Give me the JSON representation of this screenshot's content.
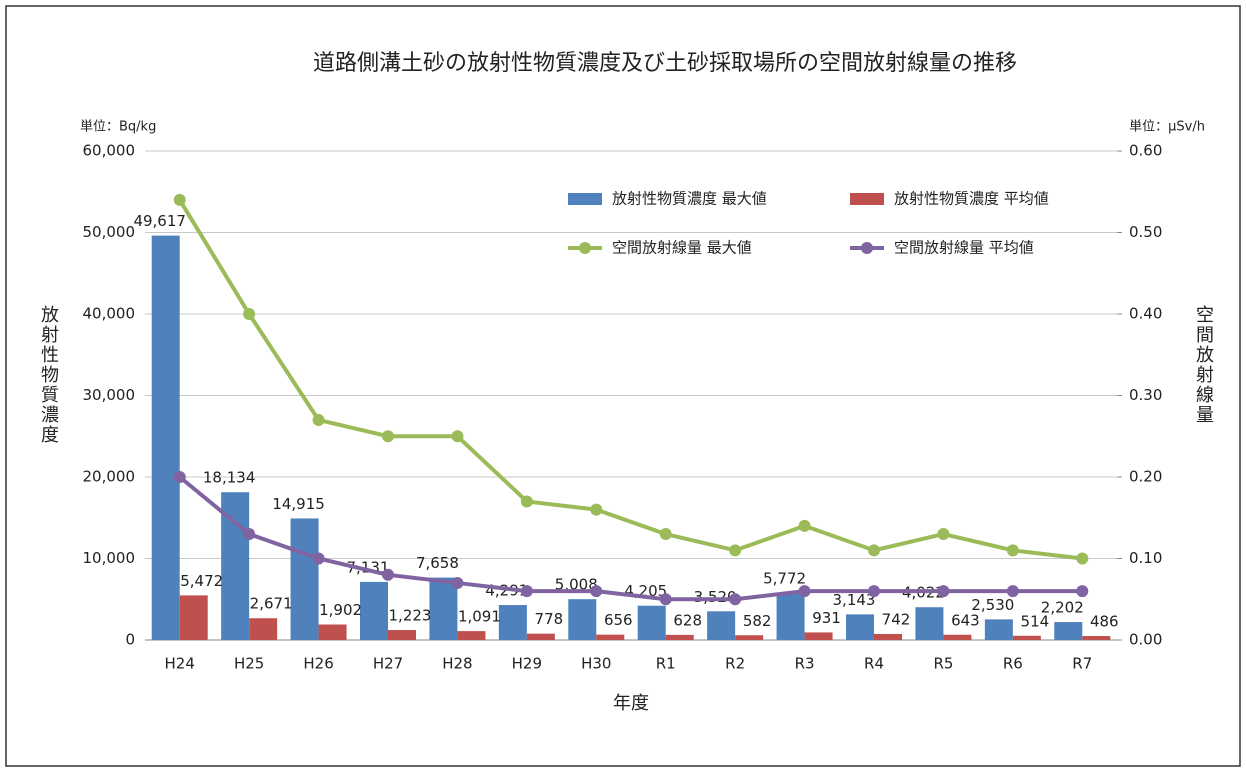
{
  "chart_data": {
    "type": "bar-line",
    "title": "道路側溝土砂の放射性物質濃度及び土砂採取場所の空間放射線量の推移",
    "y_unit": "単位：Bq/kg",
    "y2_unit": "単位：μSv/h",
    "y_label": "放射性物質濃度",
    "y2_label": "空間放射線量",
    "x_label": "年度",
    "categories": [
      "H24",
      "H25",
      "H26",
      "H27",
      "H28",
      "H29",
      "H30",
      "R1",
      "R2",
      "R3",
      "R4",
      "R5",
      "R6",
      "R7"
    ],
    "series": [
      {
        "name": "放射性物質濃度 最大値",
        "kind": "bar",
        "color": "#4f81bd",
        "values": [
          49617,
          18134,
          14915,
          7131,
          7658,
          4291,
          5008,
          4205,
          3520,
          5772,
          3143,
          4022,
          2530,
          2202
        ],
        "value_labels": [
          "49,617",
          "18,134",
          "14,915",
          "7,131",
          "7,658",
          "4,291",
          "5,008",
          "4,205",
          "3,520",
          "5,772",
          "3,143",
          "4,022",
          "2,530",
          "2,202"
        ]
      },
      {
        "name": "放射性物質濃度 平均値",
        "kind": "bar",
        "color": "#c0504d",
        "values": [
          5472,
          2671,
          1902,
          1223,
          1091,
          778,
          656,
          628,
          582,
          931,
          742,
          643,
          514,
          486
        ],
        "value_labels": [
          "5,472",
          "2,671",
          "1,902",
          "1,223",
          "1,091",
          "778",
          "656",
          "628",
          "582",
          "931",
          "742",
          "643",
          "514",
          "486"
        ]
      },
      {
        "name": "空間放射線量 最大値",
        "kind": "line",
        "axis": "y2",
        "color": "#9bbb59",
        "values": [
          0.54,
          0.4,
          0.27,
          0.25,
          0.25,
          0.17,
          0.16,
          0.13,
          0.11,
          0.14,
          0.11,
          0.13,
          0.11,
          0.1
        ]
      },
      {
        "name": "空間放射線量 平均値",
        "kind": "line",
        "axis": "y2",
        "color": "#8064a2",
        "values": [
          0.2,
          0.13,
          0.1,
          0.08,
          0.07,
          0.06,
          0.06,
          0.05,
          0.05,
          0.06,
          0.06,
          0.06,
          0.06,
          0.06
        ]
      }
    ],
    "ylim": [
      0,
      60000
    ],
    "yticks": [
      {
        "value": 0,
        "label": "0"
      },
      {
        "value": 10000,
        "label": "10,000"
      },
      {
        "value": 20000,
        "label": "20,000"
      },
      {
        "value": 30000,
        "label": "30,000"
      },
      {
        "value": 40000,
        "label": "40,000"
      },
      {
        "value": 50000,
        "label": "50,000"
      },
      {
        "value": 60000,
        "label": "60,000"
      }
    ],
    "y2lim": [
      0,
      0.6
    ],
    "y2ticks": [
      {
        "value": 0,
        "label": "0.00"
      },
      {
        "value": 0.1,
        "label": "0.10"
      },
      {
        "value": 0.2,
        "label": "0.20"
      },
      {
        "value": 0.3,
        "label": "0.30"
      },
      {
        "value": 0.4,
        "label": "0.40"
      },
      {
        "value": 0.5,
        "label": "0.50"
      },
      {
        "value": 0.6,
        "label": "0.60"
      }
    ],
    "grid": true,
    "legend": "top-right"
  }
}
